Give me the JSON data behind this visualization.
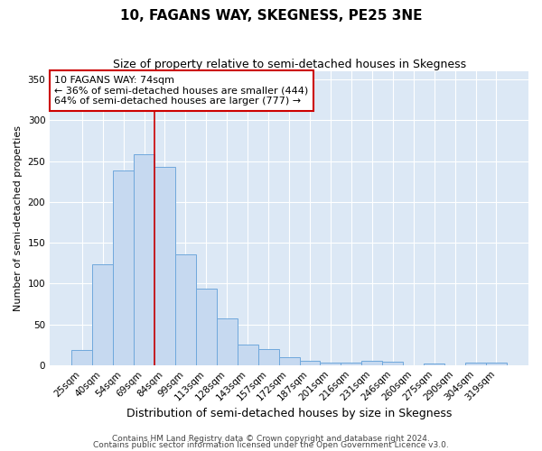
{
  "title": "10, FAGANS WAY, SKEGNESS, PE25 3NE",
  "subtitle": "Size of property relative to semi-detached houses in Skegness",
  "xlabel": "Distribution of semi-detached houses by size in Skegness",
  "ylabel": "Number of semi-detached properties",
  "categories": [
    "25sqm",
    "40sqm",
    "54sqm",
    "69sqm",
    "84sqm",
    "99sqm",
    "113sqm",
    "128sqm",
    "143sqm",
    "157sqm",
    "172sqm",
    "187sqm",
    "201sqm",
    "216sqm",
    "231sqm",
    "246sqm",
    "260sqm",
    "275sqm",
    "290sqm",
    "304sqm",
    "319sqm"
  ],
  "values": [
    18,
    124,
    238,
    259,
    243,
    136,
    94,
    57,
    25,
    20,
    10,
    5,
    3,
    3,
    5,
    4,
    0,
    2,
    0,
    3,
    3
  ],
  "bar_color": "#c6d9f0",
  "bar_edge_color": "#6fa8dc",
  "annotation_line1": "10 FAGANS WAY: 74sqm",
  "annotation_line2": "← 36% of semi-detached houses are smaller (444)",
  "annotation_line3": "64% of semi-detached houses are larger (777) →",
  "annotation_box_facecolor": "#ffffff",
  "annotation_box_edgecolor": "#cc0000",
  "red_line_index": 3.5,
  "ylim": [
    0,
    360
  ],
  "yticks": [
    0,
    50,
    100,
    150,
    200,
    250,
    300,
    350
  ],
  "footer1": "Contains HM Land Registry data © Crown copyright and database right 2024.",
  "footer2": "Contains public sector information licensed under the Open Government Licence v3.0.",
  "bg_color": "#ffffff",
  "plot_bg_color": "#dce8f5",
  "grid_color": "#ffffff",
  "title_fontsize": 11,
  "subtitle_fontsize": 9,
  "xlabel_fontsize": 9,
  "ylabel_fontsize": 8,
  "tick_fontsize": 7.5,
  "footer_fontsize": 6.5
}
